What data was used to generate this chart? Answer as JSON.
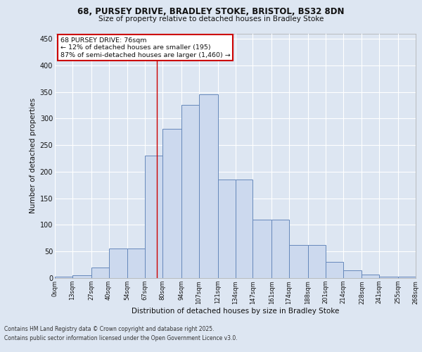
{
  "title_line1": "68, PURSEY DRIVE, BRADLEY STOKE, BRISTOL, BS32 8DN",
  "title_line2": "Size of property relative to detached houses in Bradley Stoke",
  "xlabel": "Distribution of detached houses by size in Bradley Stoke",
  "ylabel": "Number of detached properties",
  "annotation_line1": "68 PURSEY DRIVE: 76sqm",
  "annotation_line2": "← 12% of detached houses are smaller (195)",
  "annotation_line3": "87% of semi-detached houses are larger (1,460) →",
  "footer_line1": "Contains HM Land Registry data © Crown copyright and database right 2025.",
  "footer_line2": "Contains public sector information licensed under the Open Government Licence v3.0.",
  "bar_left_edges": [
    0,
    13,
    27,
    40,
    54,
    67,
    80,
    94,
    107,
    121,
    134,
    147,
    161,
    174,
    188,
    201,
    214,
    228,
    241,
    255
  ],
  "bar_widths": [
    13,
    14,
    13,
    14,
    13,
    13,
    14,
    13,
    14,
    13,
    13,
    14,
    13,
    14,
    13,
    13,
    14,
    13,
    14,
    13
  ],
  "bar_heights": [
    2,
    5,
    20,
    55,
    55,
    230,
    280,
    325,
    345,
    185,
    185,
    110,
    110,
    62,
    62,
    30,
    15,
    7,
    3,
    2
  ],
  "tick_labels": [
    "0sqm",
    "13sqm",
    "27sqm",
    "40sqm",
    "54sqm",
    "67sqm",
    "80sqm",
    "94sqm",
    "107sqm",
    "121sqm",
    "134sqm",
    "147sqm",
    "161sqm",
    "174sqm",
    "188sqm",
    "201sqm",
    "214sqm",
    "228sqm",
    "241sqm",
    "255sqm",
    "268sqm"
  ],
  "tick_positions": [
    0,
    13,
    27,
    40,
    54,
    67,
    80,
    94,
    107,
    121,
    134,
    147,
    161,
    174,
    188,
    201,
    214,
    228,
    241,
    255,
    268
  ],
  "bar_color": "#ccd9ee",
  "bar_edge_color": "#6688bb",
  "vline_x": 76,
  "vline_color": "#cc0000",
  "annotation_box_edge_color": "#cc0000",
  "background_color": "#dde6f2",
  "ylim": [
    0,
    460
  ],
  "xlim": [
    0,
    268
  ],
  "yticks": [
    0,
    50,
    100,
    150,
    200,
    250,
    300,
    350,
    400,
    450
  ]
}
